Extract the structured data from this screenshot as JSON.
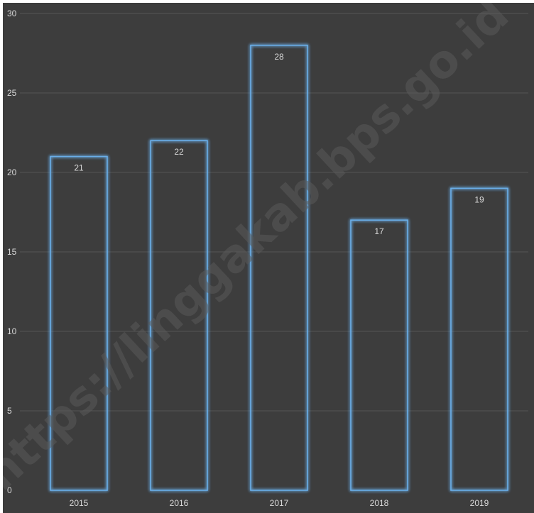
{
  "chart_data": {
    "type": "bar",
    "title": "",
    "xlabel": "",
    "ylabel": "",
    "categories": [
      "2015",
      "2016",
      "2017",
      "2018",
      "2019"
    ],
    "series": [
      {
        "values": [
          21,
          22,
          28,
          17,
          19
        ]
      }
    ],
    "ylim": [
      0,
      30
    ],
    "yticks": [
      0,
      5,
      10,
      15,
      20,
      25,
      30
    ],
    "grid": true,
    "data_labels": true,
    "legend": "none"
  },
  "watermark": "https://linggakab.bps.go.id",
  "colors": {
    "background": "#3d3d3d",
    "bar_stroke": "#6aaee8",
    "bar_glow": "#2e7bd1",
    "grid": "#555555",
    "text": "#d9d9d9"
  }
}
